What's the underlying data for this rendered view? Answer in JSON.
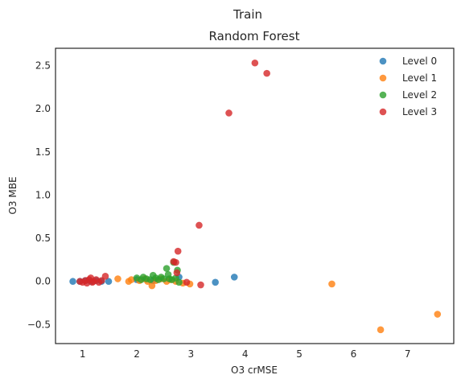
{
  "chart_data": {
    "type": "scatter",
    "suptitle": "Train",
    "title": "Random Forest",
    "xlabel": "O3 crMSE",
    "ylabel": "O3 MBE",
    "xlim": [
      0.5,
      7.85
    ],
    "ylim": [
      -0.72,
      2.7
    ],
    "xticks": [
      1,
      2,
      3,
      4,
      5,
      6,
      7
    ],
    "yticks": [
      -0.5,
      0.0,
      0.5,
      1.0,
      1.5,
      2.0,
      2.5
    ],
    "grid": false,
    "legend_position": "top-right",
    "series": [
      {
        "name": "Level 0",
        "color": "#1f77b4",
        "points": [
          [
            0.82,
            0.0
          ],
          [
            0.95,
            0.0
          ],
          [
            1.05,
            0.01
          ],
          [
            1.15,
            0.0
          ],
          [
            1.25,
            0.01
          ],
          [
            1.35,
            0.0
          ],
          [
            1.48,
            0.0
          ],
          [
            2.0,
            0.02
          ],
          [
            2.3,
            0.01
          ],
          [
            2.78,
            0.05
          ],
          [
            3.45,
            -0.01
          ],
          [
            3.8,
            0.05
          ]
        ]
      },
      {
        "name": "Level 1",
        "color": "#ff7f0e",
        "points": [
          [
            1.65,
            0.03
          ],
          [
            1.85,
            0.0
          ],
          [
            1.9,
            0.02
          ],
          [
            2.05,
            0.01
          ],
          [
            2.15,
            0.03
          ],
          [
            2.2,
            0.0
          ],
          [
            2.28,
            -0.05
          ],
          [
            2.35,
            0.01
          ],
          [
            2.45,
            0.03
          ],
          [
            2.55,
            0.0
          ],
          [
            2.62,
            0.02
          ],
          [
            2.72,
            0.0
          ],
          [
            2.85,
            -0.02
          ],
          [
            2.98,
            -0.03
          ],
          [
            5.6,
            -0.03
          ],
          [
            6.5,
            -0.56
          ],
          [
            7.55,
            -0.38
          ]
        ]
      },
      {
        "name": "Level 2",
        "color": "#2ca02c",
        "points": [
          [
            2.0,
            0.04
          ],
          [
            2.08,
            0.02
          ],
          [
            2.12,
            0.05
          ],
          [
            2.18,
            0.03
          ],
          [
            2.25,
            0.02
          ],
          [
            2.3,
            0.07
          ],
          [
            2.35,
            0.04
          ],
          [
            2.4,
            0.02
          ],
          [
            2.45,
            0.05
          ],
          [
            2.5,
            0.03
          ],
          [
            2.55,
            0.15
          ],
          [
            2.58,
            0.08
          ],
          [
            2.6,
            0.03
          ],
          [
            2.65,
            0.02
          ],
          [
            2.68,
            0.22
          ],
          [
            2.72,
            0.04
          ],
          [
            2.75,
            0.13
          ],
          [
            2.78,
            -0.01
          ]
        ]
      },
      {
        "name": "Level 3",
        "color": "#d62728",
        "points": [
          [
            0.95,
            0.0
          ],
          [
            1.0,
            -0.01
          ],
          [
            1.05,
            0.01
          ],
          [
            1.08,
            -0.02
          ],
          [
            1.12,
            0.02
          ],
          [
            1.15,
            0.04
          ],
          [
            1.18,
            -0.01
          ],
          [
            1.2,
            0.0
          ],
          [
            1.25,
            0.02
          ],
          [
            1.3,
            -0.01
          ],
          [
            1.35,
            0.01
          ],
          [
            1.42,
            0.06
          ],
          [
            2.68,
            0.23
          ],
          [
            2.72,
            0.22
          ],
          [
            2.74,
            0.1
          ],
          [
            2.76,
            0.35
          ],
          [
            2.92,
            -0.01
          ],
          [
            3.15,
            0.65
          ],
          [
            3.18,
            -0.04
          ],
          [
            3.7,
            1.95
          ],
          [
            4.18,
            2.53
          ],
          [
            4.4,
            2.41
          ]
        ]
      }
    ]
  }
}
